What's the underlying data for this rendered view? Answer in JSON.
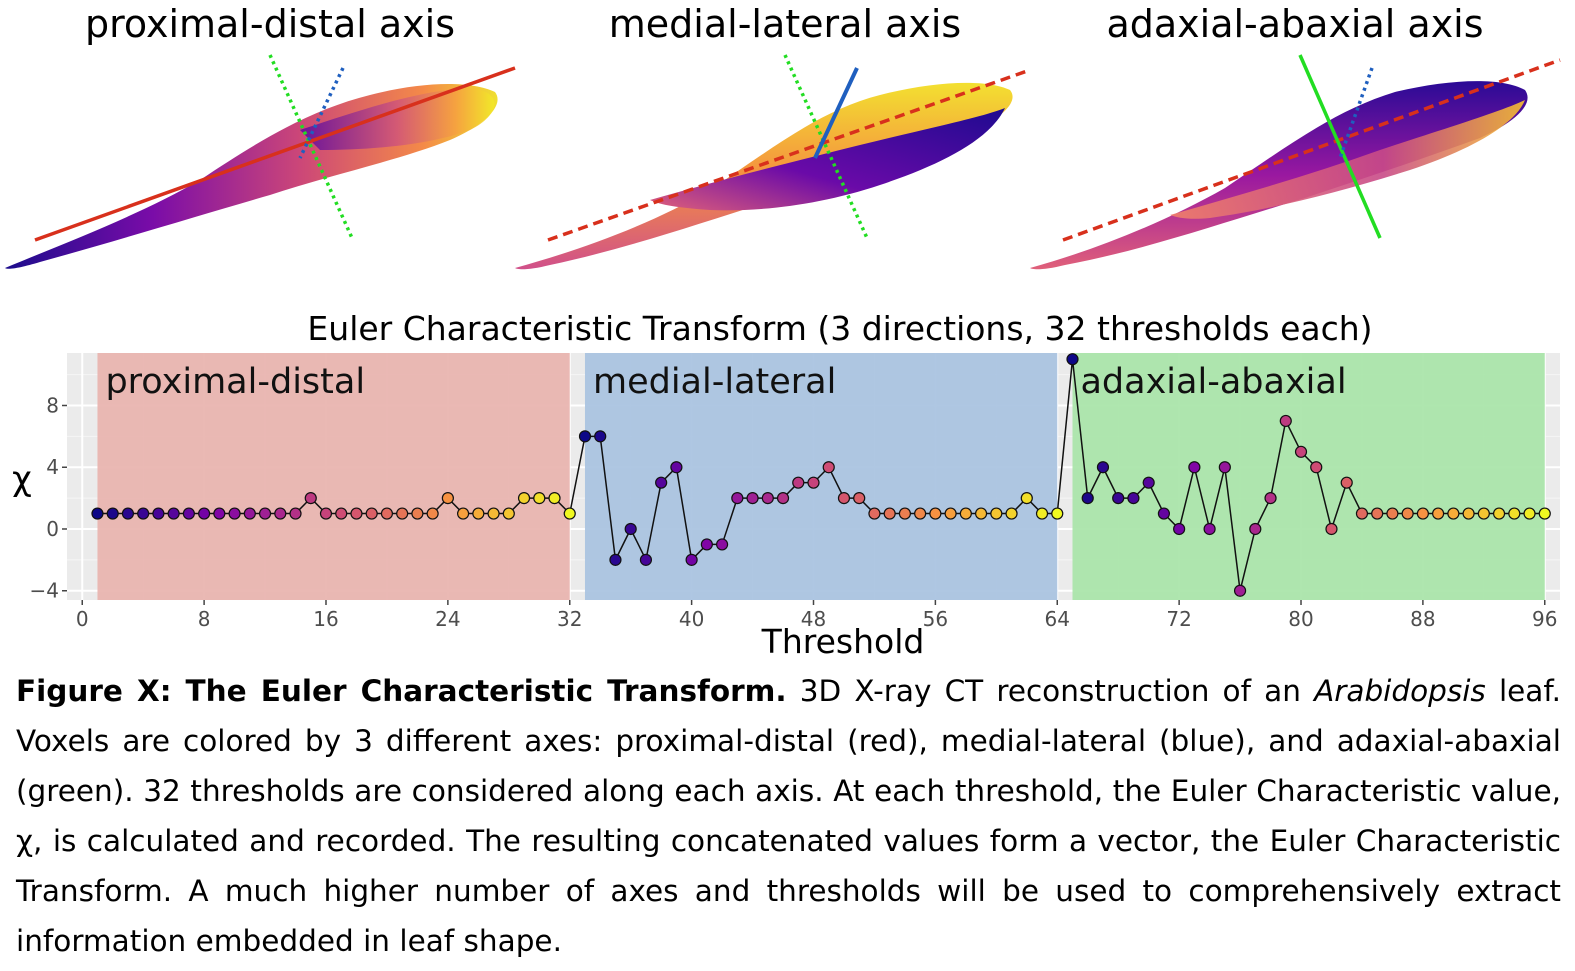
{
  "leaf_panels": [
    {
      "title": "proximal-distal axis",
      "colormap": "plasma",
      "highlighted_axis": "proximal-distal",
      "axis_colors": {
        "proximal_distal": "#e0301e",
        "medial_lateral": "#1f5fbf",
        "adaxial_abaxial": "#22dd22"
      }
    },
    {
      "title": "medial-lateral axis",
      "colormap": "plasma",
      "highlighted_axis": "medial-lateral",
      "axis_colors": {
        "proximal_distal": "#e0301e",
        "medial_lateral": "#1f5fbf",
        "adaxial_abaxial": "#22dd22"
      }
    },
    {
      "title": "adaxial-abaxial axis",
      "colormap": "plasma",
      "highlighted_axis": "adaxial-abaxial",
      "axis_colors": {
        "proximal_distal": "#e0301e",
        "medial_lateral": "#1f5fbf",
        "adaxial_abaxial": "#22dd22"
      }
    }
  ],
  "chart_data": {
    "type": "line",
    "title": "Euler Characteristic Transform (3 directions, 32 thresholds each)",
    "xlabel": "Threshold",
    "ylabel": "χ",
    "xlim": [
      -1,
      97
    ],
    "ylim": [
      -4.6,
      11.4
    ],
    "xticks": [
      0,
      8,
      16,
      24,
      32,
      40,
      48,
      56,
      64,
      72,
      80,
      88,
      96
    ],
    "yticks": [
      -4,
      0,
      4,
      8
    ],
    "ytick_labels": [
      "−4",
      "0",
      "4",
      "8"
    ],
    "grid": true,
    "marker_colormap": "plasma (by position within each direction)",
    "regions": [
      {
        "label": "proximal-distal",
        "x_start": 1,
        "x_end": 32,
        "color": "#e8b3ae"
      },
      {
        "label": "medial-lateral",
        "x_start": 33,
        "x_end": 64,
        "color": "#a8c2df"
      },
      {
        "label": "adaxial-abaxial",
        "x_start": 65,
        "x_end": 96,
        "color": "#a8e4a8"
      }
    ],
    "series": [
      {
        "x": [
          1,
          2,
          3,
          4,
          5,
          6,
          7,
          8,
          9,
          10,
          11,
          12,
          13,
          14,
          15,
          16,
          17,
          18,
          19,
          20,
          21,
          22,
          23,
          24,
          25,
          26,
          27,
          28,
          29,
          30,
          31,
          32,
          33,
          34,
          35,
          36,
          37,
          38,
          39,
          40,
          41,
          42,
          43,
          44,
          45,
          46,
          47,
          48,
          49,
          50,
          51,
          52,
          53,
          54,
          55,
          56,
          57,
          58,
          59,
          60,
          61,
          62,
          63,
          64,
          65,
          66,
          67,
          68,
          69,
          70,
          71,
          72,
          73,
          74,
          75,
          76,
          77,
          78,
          79,
          80,
          81,
          82,
          83,
          84,
          85,
          86,
          87,
          88,
          89,
          90,
          91,
          92,
          93,
          94,
          95,
          96
        ],
        "values": [
          1,
          1,
          1,
          1,
          1,
          1,
          1,
          1,
          1,
          1,
          1,
          1,
          1,
          1,
          2,
          1,
          1,
          1,
          1,
          1,
          1,
          1,
          1,
          2,
          1,
          1,
          1,
          1,
          2,
          2,
          2,
          1,
          6,
          6,
          -2,
          0,
          -2,
          3,
          4,
          -2,
          -1,
          -1,
          2,
          2,
          2,
          2,
          3,
          3,
          4,
          2,
          2,
          1,
          1,
          1,
          1,
          1,
          1,
          1,
          1,
          1,
          1,
          2,
          1,
          1,
          11,
          2,
          4,
          2,
          2,
          3,
          1,
          0,
          4,
          0,
          4,
          -4,
          0,
          2,
          7,
          5,
          4,
          0,
          3,
          1,
          1,
          1,
          1,
          1,
          1,
          1,
          1,
          1,
          1,
          1,
          1,
          1
        ]
      }
    ]
  },
  "caption": {
    "bold_lead": "Figure X: The Euler Characteristic Transform.",
    "text_part1": " 3D X-ray CT reconstruction of an ",
    "italic_word": "Arabidopsis",
    "text_part2": " leaf. Voxels are colored by 3 different axes: proximal-distal (red), medial-lateral (blue), and adaxial-abaxial (green). 32 thresholds are considered along each axis. At each threshold, the Euler Characteristic value, χ, is calculated and recorded. The resulting concatenated values form a vector, the Euler Characteristic Transform. A much higher number of axes and thresholds will be used to comprehensively extract information embedded in leaf shape."
  }
}
